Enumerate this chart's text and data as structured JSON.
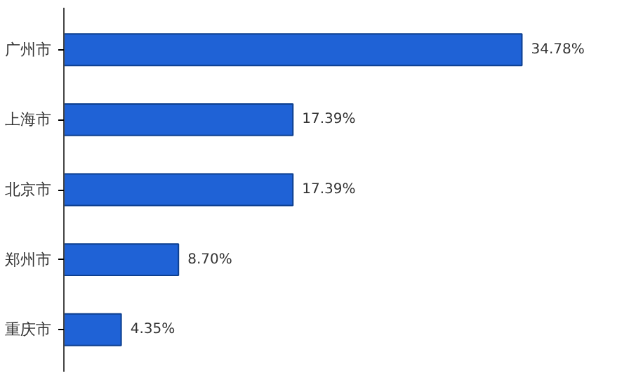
{
  "chart_data": {
    "type": "bar",
    "orientation": "horizontal",
    "categories": [
      "广州市",
      "上海市",
      "北京市",
      "郑州市",
      "重庆市"
    ],
    "values": [
      34.78,
      17.39,
      17.39,
      8.7,
      4.35
    ],
    "value_labels": [
      "34.78%",
      "17.39%",
      "17.39%",
      "8.70%",
      "4.35%"
    ],
    "color": "#1f62d6",
    "grid": false
  }
}
